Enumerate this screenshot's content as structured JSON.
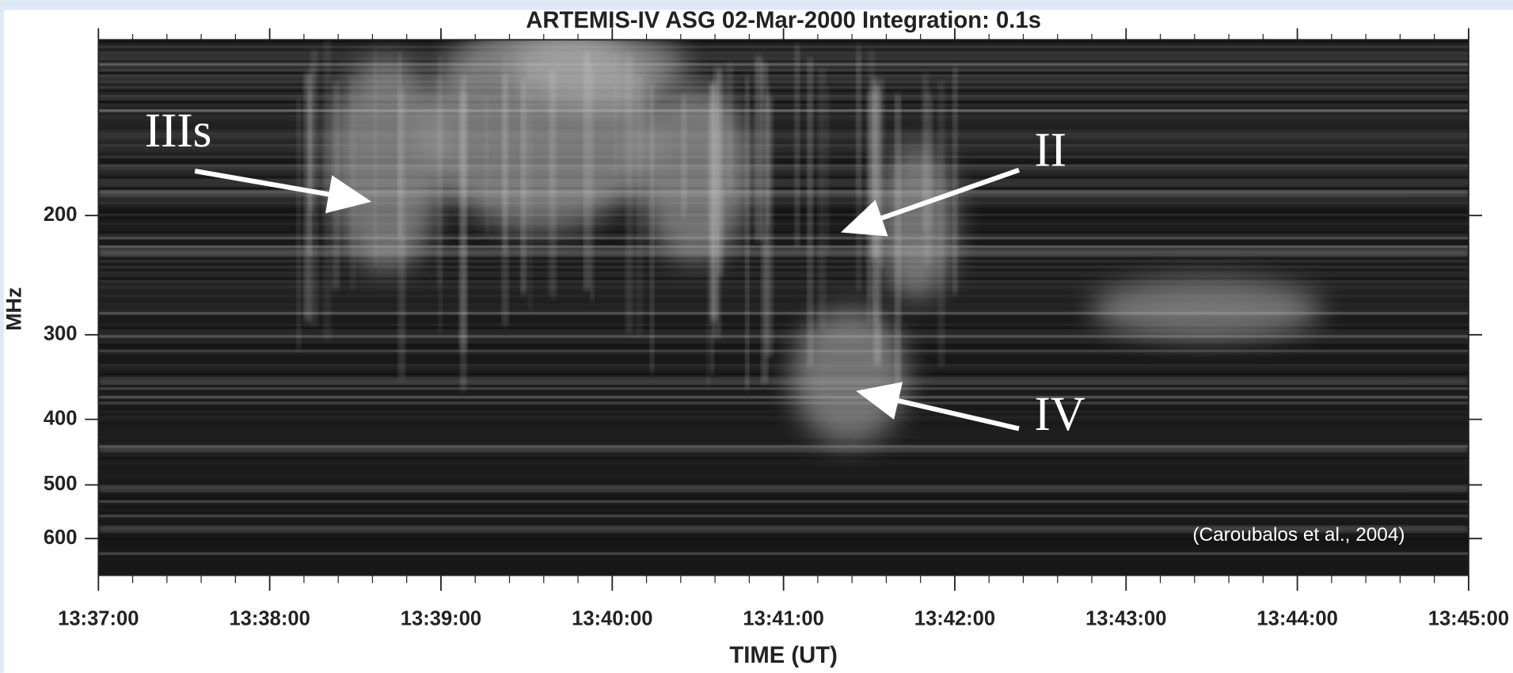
{
  "chart_data": {
    "type": "spectrogram",
    "title": "ARTEMIS-IV  ASG 02-Mar-2000   Integration: 0.1s",
    "xlabel": "TIME (UT)",
    "ylabel": "MHz",
    "xlim": [
      "13:37:00",
      "13:45:00"
    ],
    "xticks": [
      "13:37:00",
      "13:38:00",
      "13:39:00",
      "13:40:00",
      "13:41:00",
      "13:42:00",
      "13:43:00",
      "13:44:00",
      "13:45:00"
    ],
    "ylim": [
      110,
      680
    ],
    "yticks": [
      200,
      300,
      400,
      500,
      600
    ],
    "log_scale": true,
    "inverted_y": true,
    "annotations": [
      "IIIs",
      "II",
      "IV"
    ],
    "source": "(Caroubalos et al., 2004)"
  }
}
